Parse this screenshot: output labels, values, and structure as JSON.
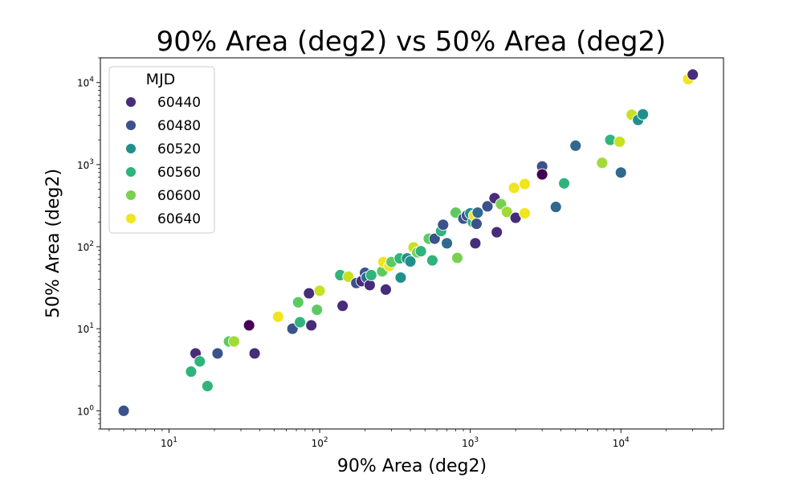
{
  "chart_data": {
    "type": "scatter",
    "title": "90% Area (deg2) vs 50% Area (deg2)",
    "xlabel": "90% Area (deg2)",
    "ylabel": "50% Area (deg2)",
    "x_scale": "log",
    "y_scale": "log",
    "xlim": [
      3.5,
      48000
    ],
    "ylim": [
      0.6,
      20000
    ],
    "x_ticks": [
      {
        "value": 10,
        "label": "10^1"
      },
      {
        "value": 100,
        "label": "10^2"
      },
      {
        "value": 1000,
        "label": "10^3"
      },
      {
        "value": 10000,
        "label": "10^4"
      }
    ],
    "y_ticks": [
      {
        "value": 1,
        "label": "10^0"
      },
      {
        "value": 10,
        "label": "10^1"
      },
      {
        "value": 100,
        "label": "10^2"
      },
      {
        "value": 1000,
        "label": "10^3"
      },
      {
        "value": 10000,
        "label": "10^4"
      }
    ],
    "grid": false,
    "legend": {
      "title": "MJD",
      "placement": "upper-left",
      "entries": [
        {
          "label": "60440",
          "color": "#472c7a"
        },
        {
          "label": "60480",
          "color": "#3b528b"
        },
        {
          "label": "60520",
          "color": "#21908d"
        },
        {
          "label": "60560",
          "color": "#2fb47c"
        },
        {
          "label": "60600",
          "color": "#7ad151"
        },
        {
          "label": "60640",
          "color": "#f0e51e"
        }
      ]
    },
    "points": [
      {
        "x": 5,
        "y": 1,
        "color": "#3b528b"
      },
      {
        "x": 14,
        "y": 3,
        "color": "#2fb47c"
      },
      {
        "x": 15,
        "y": 5,
        "color": "#472c7a"
      },
      {
        "x": 16,
        "y": 4,
        "color": "#2fb47c"
      },
      {
        "x": 18,
        "y": 2,
        "color": "#2fb47c"
      },
      {
        "x": 21,
        "y": 5,
        "color": "#3b528b"
      },
      {
        "x": 25,
        "y": 7,
        "color": "#5ec962"
      },
      {
        "x": 27,
        "y": 7,
        "color": "#a2da37"
      },
      {
        "x": 34,
        "y": 11,
        "color": "#440154"
      },
      {
        "x": 37,
        "y": 5,
        "color": "#472c7a"
      },
      {
        "x": 53,
        "y": 14,
        "color": "#f0e51e"
      },
      {
        "x": 66,
        "y": 10,
        "color": "#3b528b"
      },
      {
        "x": 72,
        "y": 21,
        "color": "#5ec962"
      },
      {
        "x": 74,
        "y": 12,
        "color": "#2fb47c"
      },
      {
        "x": 85,
        "y": 27,
        "color": "#472c7a"
      },
      {
        "x": 88,
        "y": 11,
        "color": "#472c7a"
      },
      {
        "x": 96,
        "y": 17,
        "color": "#5ec962"
      },
      {
        "x": 100,
        "y": 29,
        "color": "#c8e020"
      },
      {
        "x": 137,
        "y": 45,
        "color": "#2fb47c"
      },
      {
        "x": 142,
        "y": 19,
        "color": "#472c7a"
      },
      {
        "x": 155,
        "y": 43,
        "color": "#c8e020"
      },
      {
        "x": 175,
        "y": 36,
        "color": "#3b528b"
      },
      {
        "x": 190,
        "y": 38,
        "color": "#472c7a"
      },
      {
        "x": 200,
        "y": 48,
        "color": "#3b528b"
      },
      {
        "x": 205,
        "y": 42,
        "color": "#31688e"
      },
      {
        "x": 215,
        "y": 34,
        "color": "#472c7a"
      },
      {
        "x": 220,
        "y": 45,
        "color": "#2fb47c"
      },
      {
        "x": 260,
        "y": 50,
        "color": "#5ec962"
      },
      {
        "x": 265,
        "y": 65,
        "color": "#f0e51e"
      },
      {
        "x": 275,
        "y": 30,
        "color": "#472c7a"
      },
      {
        "x": 290,
        "y": 58,
        "color": "#f0e51e"
      },
      {
        "x": 300,
        "y": 65,
        "color": "#5ec962"
      },
      {
        "x": 340,
        "y": 72,
        "color": "#2fb47c"
      },
      {
        "x": 345,
        "y": 42,
        "color": "#21908d"
      },
      {
        "x": 380,
        "y": 72,
        "color": "#21908d"
      },
      {
        "x": 400,
        "y": 66,
        "color": "#21908d"
      },
      {
        "x": 420,
        "y": 98,
        "color": "#c8e020"
      },
      {
        "x": 445,
        "y": 85,
        "color": "#7ad151"
      },
      {
        "x": 470,
        "y": 88,
        "color": "#2fb47c"
      },
      {
        "x": 530,
        "y": 125,
        "color": "#5ec962"
      },
      {
        "x": 560,
        "y": 68,
        "color": "#2fb47c"
      },
      {
        "x": 580,
        "y": 125,
        "color": "#3b528b"
      },
      {
        "x": 640,
        "y": 155,
        "color": "#2fb47c"
      },
      {
        "x": 660,
        "y": 185,
        "color": "#3b528b"
      },
      {
        "x": 700,
        "y": 110,
        "color": "#31688e"
      },
      {
        "x": 800,
        "y": 260,
        "color": "#5ec962"
      },
      {
        "x": 820,
        "y": 73,
        "color": "#7ad151"
      },
      {
        "x": 900,
        "y": 220,
        "color": "#3b528b"
      },
      {
        "x": 950,
        "y": 240,
        "color": "#3b528b"
      },
      {
        "x": 1000,
        "y": 255,
        "color": "#21908d"
      },
      {
        "x": 1040,
        "y": 200,
        "color": "#2fb47c"
      },
      {
        "x": 1060,
        "y": 240,
        "color": "#f0e51e"
      },
      {
        "x": 1080,
        "y": 110,
        "color": "#472c7a"
      },
      {
        "x": 1100,
        "y": 190,
        "color": "#3b528b"
      },
      {
        "x": 1120,
        "y": 260,
        "color": "#31688e"
      },
      {
        "x": 1300,
        "y": 310,
        "color": "#3b528b"
      },
      {
        "x": 1450,
        "y": 390,
        "color": "#472c7a"
      },
      {
        "x": 1500,
        "y": 150,
        "color": "#472c7a"
      },
      {
        "x": 1600,
        "y": 330,
        "color": "#7ad151"
      },
      {
        "x": 1750,
        "y": 265,
        "color": "#a2da37"
      },
      {
        "x": 1950,
        "y": 520,
        "color": "#f0e51e"
      },
      {
        "x": 2000,
        "y": 225,
        "color": "#472c7a"
      },
      {
        "x": 2300,
        "y": 580,
        "color": "#f0e51e"
      },
      {
        "x": 2300,
        "y": 255,
        "color": "#f0e51e"
      },
      {
        "x": 3000,
        "y": 950,
        "color": "#3b528b"
      },
      {
        "x": 3000,
        "y": 760,
        "color": "#440154"
      },
      {
        "x": 3700,
        "y": 305,
        "color": "#31688e"
      },
      {
        "x": 4200,
        "y": 590,
        "color": "#2fb47c"
      },
      {
        "x": 5000,
        "y": 1700,
        "color": "#31688e"
      },
      {
        "x": 7500,
        "y": 1050,
        "color": "#a2da37"
      },
      {
        "x": 8500,
        "y": 2000,
        "color": "#2fb47c"
      },
      {
        "x": 9800,
        "y": 1900,
        "color": "#c8e020"
      },
      {
        "x": 10000,
        "y": 800,
        "color": "#31688e"
      },
      {
        "x": 11800,
        "y": 4050,
        "color": "#c8e020"
      },
      {
        "x": 13000,
        "y": 3500,
        "color": "#21908d"
      },
      {
        "x": 14000,
        "y": 4100,
        "color": "#21908d"
      },
      {
        "x": 28000,
        "y": 11000,
        "color": "#f0e51e"
      },
      {
        "x": 30000,
        "y": 12500,
        "color": "#472c7a"
      }
    ]
  }
}
